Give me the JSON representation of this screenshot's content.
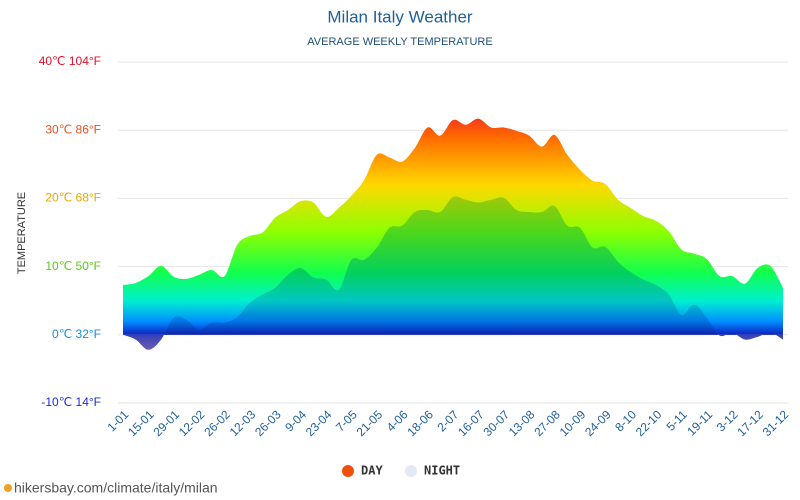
{
  "chart_data": {
    "type": "area",
    "title": "Milan Italy Weather",
    "subtitle": "AVERAGE WEEKLY TEMPERATURE",
    "y_label": "TEMPERATURE",
    "footer": "hikersbay.com/climate/italy/milan",
    "categories": [
      "1-01",
      null,
      "15-01",
      null,
      "29-01",
      null,
      "12-02",
      null,
      "26-02",
      null,
      "12-03",
      null,
      "26-03",
      null,
      "9-04",
      null,
      "23-04",
      null,
      "7-05",
      null,
      "21-05",
      null,
      "4-06",
      null,
      "18-06",
      null,
      "2-07",
      null,
      "16-07",
      null,
      "30-07",
      null,
      "13-08",
      null,
      "27-08",
      null,
      "10-09",
      null,
      "24-09",
      null,
      "8-10",
      null,
      "22-10",
      null,
      "5-11",
      null,
      "19-11",
      null,
      "3-12",
      null,
      "17-12",
      null,
      "31-12"
    ],
    "series": [
      {
        "name": "DAY",
        "color": "#f0500c",
        "values": [
          7.3,
          7.6,
          8.6,
          10.1,
          8.5,
          8.2,
          8.8,
          9.5,
          8.6,
          13.2,
          14.5,
          15,
          17.2,
          18.3,
          19.6,
          19.4,
          17.3,
          18.6,
          20.4,
          22.7,
          26.4,
          26,
          25.4,
          27.4,
          30.4,
          29.2,
          31.5,
          30.8,
          31.7,
          30.4,
          30.4,
          29.9,
          29.2,
          27.6,
          29.3,
          26.4,
          24.2,
          22.6,
          22.1,
          19.8,
          18.6,
          17.4,
          16.7,
          15.2,
          12.5,
          11.9,
          11.1,
          8.6,
          8.6,
          7.5,
          9.8,
          10.1,
          6.9
        ]
      },
      {
        "name": "NIGHT",
        "color": "#e3e8f5",
        "values": [
          0,
          -0.7,
          -2.2,
          -0.7,
          2.5,
          2.2,
          0.7,
          1.8,
          1.8,
          2.6,
          4.7,
          5.9,
          6.9,
          8.8,
          9.8,
          8.4,
          8.1,
          6.6,
          11,
          11,
          12.8,
          15.7,
          16,
          18,
          18.3,
          18,
          20.2,
          19.8,
          19.4,
          19.8,
          20.1,
          18.3,
          18,
          18,
          18.9,
          16,
          15.7,
          12.8,
          12.9,
          10.7,
          9.2,
          8.1,
          7.3,
          5.9,
          2.9,
          4.4,
          2.5,
          -0.1,
          0.3,
          -0.7,
          -0.3,
          0.3,
          -0.7
        ]
      }
    ],
    "ylim": [
      -10,
      40
    ],
    "yticks": [
      {
        "value": -10,
        "label": "-10℃ 14°F"
      },
      {
        "value": 0,
        "label": "0℃ 32°F"
      },
      {
        "value": 10,
        "label": "10℃ 50°F"
      },
      {
        "value": 20,
        "label": "20℃ 68°F"
      },
      {
        "value": 30,
        "label": "30℃ 86°F"
      },
      {
        "value": 40,
        "label": "40℃ 104°F"
      }
    ],
    "ytick_colors": [
      "#1a2bd6",
      "#1a8ad6",
      "#5cc81a",
      "#e6a800",
      "#e8501a",
      "#e0102a"
    ],
    "grid": true
  }
}
